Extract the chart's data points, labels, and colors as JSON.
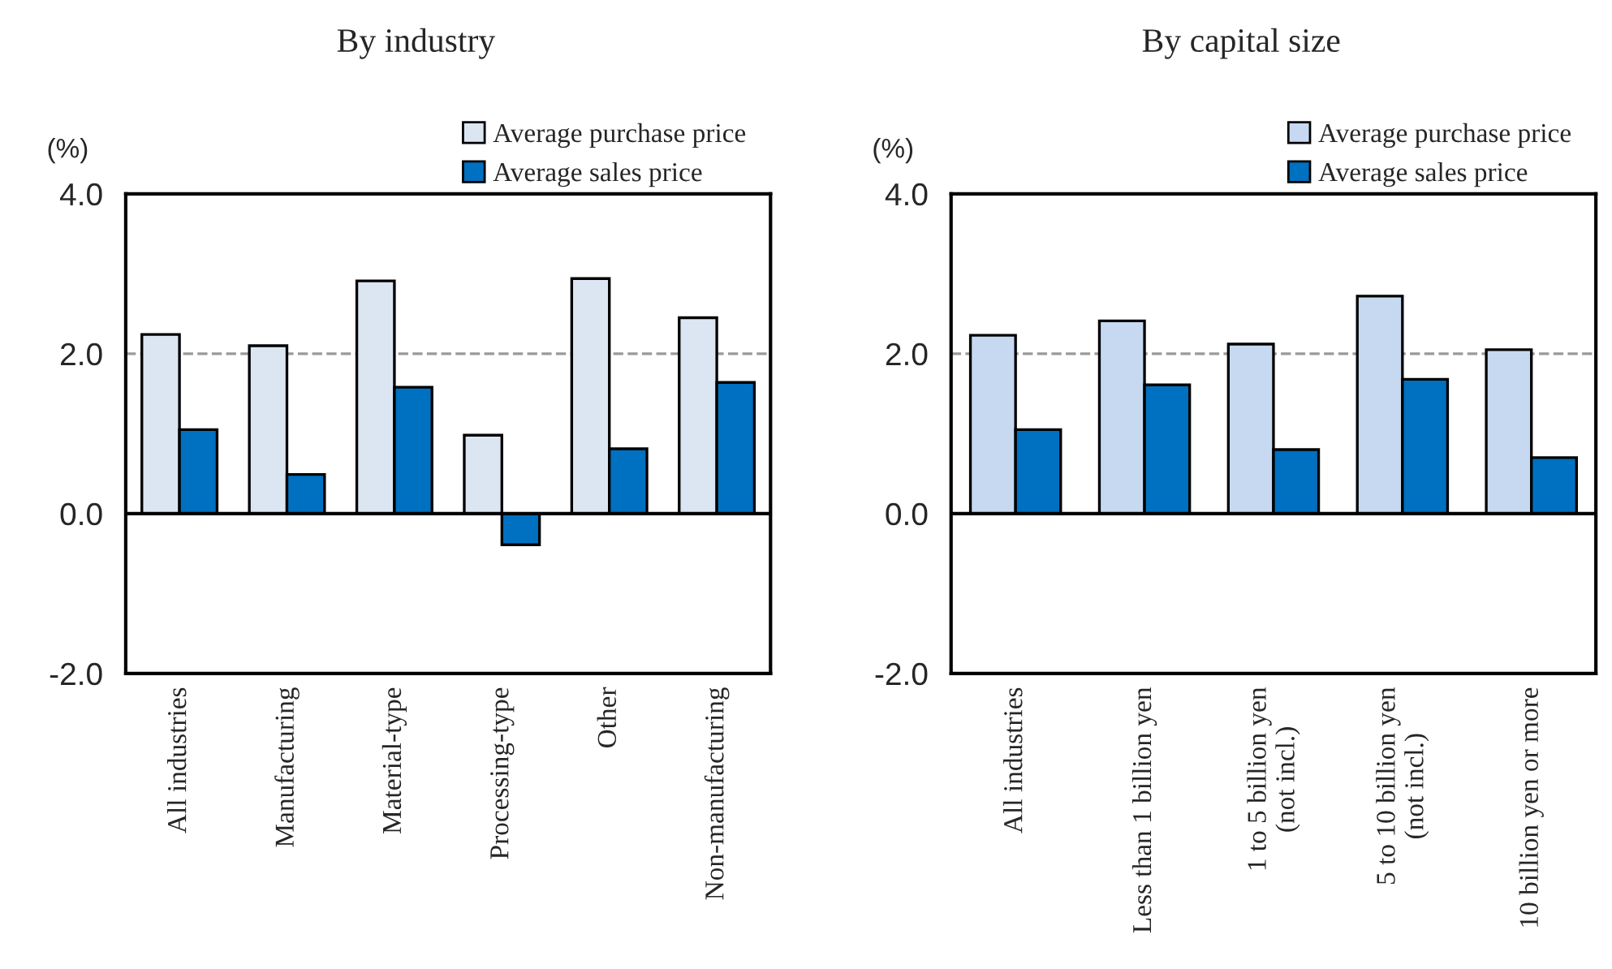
{
  "chart_data": [
    {
      "type": "bar",
      "title": "By industry",
      "ylabel": "(%)",
      "categories": [
        "All industries",
        "Manufacturing",
        "Material-type",
        "Processing-type",
        "Other",
        "Non-manufacturing"
      ],
      "series": [
        {
          "name": "Average purchase price",
          "color": "#dce6f2",
          "values": [
            2.24,
            2.1,
            2.91,
            0.98,
            2.94,
            2.45
          ]
        },
        {
          "name": "Average sales price",
          "color": "#0070c0",
          "values": [
            1.05,
            0.49,
            1.58,
            -0.39,
            0.81,
            1.64
          ]
        }
      ],
      "ylim": [
        -2.0,
        4.0
      ],
      "yticks": [
        {
          "value": -2,
          "label": "-2.0"
        },
        {
          "value": 0,
          "label": "0.0"
        },
        {
          "value": 2,
          "label": "2.0"
        },
        {
          "value": 4,
          "label": "4.0"
        }
      ],
      "ref_lines": [
        {
          "axis": "y",
          "value": 2.0,
          "color": "#999999",
          "line_style": "dashed"
        }
      ],
      "grid": false,
      "legend": "top right"
    },
    {
      "type": "bar",
      "title": "By capital size",
      "ylabel": "(%)",
      "categories": [
        "All industries",
        "Less than 1 billion yen",
        "1 to 5 billion yen\n(not incl.)",
        "5 to 10 billion yen\n(not incl.)",
        "10 billion yen or more"
      ],
      "series": [
        {
          "name": "Average purchase price",
          "color": "#c6d9f1",
          "values": [
            2.23,
            2.41,
            2.12,
            2.72,
            2.05
          ]
        },
        {
          "name": "Average sales price",
          "color": "#0070c0",
          "values": [
            1.05,
            1.61,
            0.8,
            1.68,
            0.7
          ]
        }
      ],
      "ylim": [
        -2.0,
        4.0
      ],
      "yticks": [
        {
          "value": -2,
          "label": "-2.0"
        },
        {
          "value": 0,
          "label": "0.0"
        },
        {
          "value": 2,
          "label": "2.0"
        },
        {
          "value": 4,
          "label": "4.0"
        }
      ],
      "ref_lines": [
        {
          "axis": "y",
          "value": 2.0,
          "color": "#999999",
          "line_style": "dashed"
        }
      ],
      "grid": false,
      "legend": "top right"
    }
  ]
}
